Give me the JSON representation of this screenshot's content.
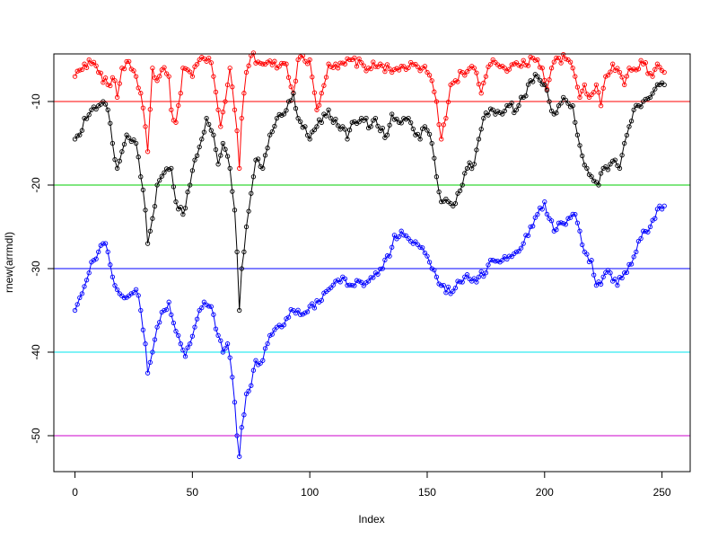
{
  "chart_data": {
    "type": "line",
    "xlabel": "Index",
    "ylabel": "rnew(arrmdl)",
    "xlim": [
      -9,
      262
    ],
    "ylim": [
      -54.3,
      -4.3
    ],
    "x_ticks": [
      0,
      50,
      100,
      150,
      200,
      250
    ],
    "y_ticks": [
      -10,
      -20,
      -30,
      -40,
      -50
    ],
    "grid": false,
    "legend": "none",
    "markers": "open circles",
    "x_points_per_series": 252,
    "hlines": [
      {
        "y": -10,
        "color": "#ff0000"
      },
      {
        "y": -20,
        "color": "#00cd00"
      },
      {
        "y": -30,
        "color": "#0000ff"
      },
      {
        "y": -40,
        "color": "#00e5ee"
      },
      {
        "y": -50,
        "color": "#cd00cd"
      }
    ],
    "series": [
      {
        "color": "#ff0000",
        "keypoints": [
          [
            0,
            -7.0
          ],
          [
            4,
            -5.5
          ],
          [
            8,
            -5.3
          ],
          [
            10,
            -6.5
          ],
          [
            14,
            -8.0
          ],
          [
            17,
            -7.5
          ],
          [
            18,
            -9.5
          ],
          [
            20,
            -6.0
          ],
          [
            23,
            -5.2
          ],
          [
            26,
            -7.0
          ],
          [
            28,
            -9.0
          ],
          [
            30,
            -13.0
          ],
          [
            31,
            -16.0
          ],
          [
            33,
            -6.0
          ],
          [
            35,
            -7.5
          ],
          [
            37,
            -6.2
          ],
          [
            40,
            -7.0
          ],
          [
            41,
            -11.0
          ],
          [
            43,
            -12.5
          ],
          [
            45,
            -9.0
          ],
          [
            46,
            -6.0
          ],
          [
            50,
            -7.0
          ],
          [
            53,
            -5.0
          ],
          [
            57,
            -4.8
          ],
          [
            59,
            -7.0
          ],
          [
            61,
            -11.0
          ],
          [
            62,
            -13.0
          ],
          [
            64,
            -10.0
          ],
          [
            65,
            -8.0
          ],
          [
            66,
            -6.0
          ],
          [
            68,
            -11.0
          ],
          [
            69,
            -13.5
          ],
          [
            70,
            -18.0
          ],
          [
            71,
            -12.0
          ],
          [
            72,
            -9.0
          ],
          [
            73,
            -6.5
          ],
          [
            75,
            -4.5
          ],
          [
            80,
            -5.5
          ],
          [
            90,
            -5.5
          ],
          [
            93,
            -9.0
          ],
          [
            95,
            -5.0
          ],
          [
            100,
            -5.0
          ],
          [
            103,
            -11.0
          ],
          [
            105,
            -9.0
          ],
          [
            108,
            -5.5
          ],
          [
            112,
            -6.0
          ],
          [
            118,
            -5.0
          ],
          [
            125,
            -6.0
          ],
          [
            130,
            -5.5
          ],
          [
            135,
            -6.5
          ],
          [
            140,
            -5.8
          ],
          [
            148,
            -6.0
          ],
          [
            150,
            -6.5
          ],
          [
            152,
            -7.5
          ],
          [
            154,
            -10.0
          ],
          [
            156,
            -14.5
          ],
          [
            158,
            -12.0
          ],
          [
            160,
            -8.0
          ],
          [
            165,
            -6.5
          ],
          [
            170,
            -6.0
          ],
          [
            173,
            -9.0
          ],
          [
            175,
            -7.0
          ],
          [
            178,
            -5.0
          ],
          [
            183,
            -6.0
          ],
          [
            187,
            -5.5
          ],
          [
            190,
            -5.8
          ],
          [
            195,
            -4.8
          ],
          [
            197,
            -5.0
          ],
          [
            199,
            -6.0
          ],
          [
            201,
            -8.5
          ],
          [
            203,
            -6.0
          ],
          [
            206,
            -4.8
          ],
          [
            210,
            -5.0
          ],
          [
            213,
            -7.0
          ],
          [
            215,
            -9.5
          ],
          [
            217,
            -8.0
          ],
          [
            219,
            -9.5
          ],
          [
            222,
            -8.0
          ],
          [
            224,
            -10.5
          ],
          [
            226,
            -7.0
          ],
          [
            229,
            -5.5
          ],
          [
            232,
            -6.5
          ],
          [
            234,
            -8.0
          ],
          [
            236,
            -6.0
          ],
          [
            242,
            -5.5
          ],
          [
            246,
            -7.0
          ],
          [
            248,
            -5.5
          ],
          [
            251,
            -6.5
          ]
        ]
      },
      {
        "color": "#000000",
        "keypoints": [
          [
            0,
            -14.5
          ],
          [
            2,
            -14.0
          ],
          [
            4,
            -12.0
          ],
          [
            7,
            -11.0
          ],
          [
            10,
            -10.5
          ],
          [
            12,
            -10.0
          ],
          [
            14,
            -11.0
          ],
          [
            16,
            -15.0
          ],
          [
            18,
            -18.0
          ],
          [
            20,
            -16.0
          ],
          [
            22,
            -14.0
          ],
          [
            26,
            -15.0
          ],
          [
            28,
            -19.0
          ],
          [
            30,
            -23.0
          ],
          [
            31,
            -27.0
          ],
          [
            33,
            -24.0
          ],
          [
            35,
            -20.0
          ],
          [
            38,
            -18.5
          ],
          [
            41,
            -18.0
          ],
          [
            43,
            -22.0
          ],
          [
            46,
            -23.5
          ],
          [
            49,
            -20.0
          ],
          [
            51,
            -17.0
          ],
          [
            54,
            -14.5
          ],
          [
            56,
            -12.0
          ],
          [
            59,
            -14.0
          ],
          [
            61,
            -17.5
          ],
          [
            63,
            -15.0
          ],
          [
            66,
            -18.0
          ],
          [
            68,
            -23.0
          ],
          [
            69,
            -28.0
          ],
          [
            70,
            -35.0
          ],
          [
            71,
            -30.0
          ],
          [
            73,
            -25.0
          ],
          [
            75,
            -21.0
          ],
          [
            77,
            -17.0
          ],
          [
            80,
            -18.0
          ],
          [
            83,
            -14.0
          ],
          [
            86,
            -12.0
          ],
          [
            89,
            -11.5
          ],
          [
            91,
            -10.0
          ],
          [
            93,
            -9.0
          ],
          [
            95,
            -12.0
          ],
          [
            98,
            -13.0
          ],
          [
            100,
            -14.5
          ],
          [
            103,
            -13.0
          ],
          [
            106,
            -11.5
          ],
          [
            108,
            -11.0
          ],
          [
            110,
            -12.5
          ],
          [
            114,
            -13.0
          ],
          [
            116,
            -14.5
          ],
          [
            118,
            -12.5
          ],
          [
            122,
            -12.0
          ],
          [
            126,
            -13.0
          ],
          [
            128,
            -12.0
          ],
          [
            130,
            -13.5
          ],
          [
            133,
            -14.0
          ],
          [
            135,
            -11.5
          ],
          [
            138,
            -12.5
          ],
          [
            142,
            -12.0
          ],
          [
            145,
            -14.0
          ],
          [
            147,
            -14.5
          ],
          [
            149,
            -13.0
          ],
          [
            152,
            -15.0
          ],
          [
            154,
            -19.0
          ],
          [
            156,
            -22.0
          ],
          [
            159,
            -22.0
          ],
          [
            161,
            -22.5
          ],
          [
            163,
            -21.0
          ],
          [
            165,
            -20.0
          ],
          [
            167,
            -18.0
          ],
          [
            170,
            -17.5
          ],
          [
            172,
            -14.5
          ],
          [
            174,
            -12.0
          ],
          [
            178,
            -11.0
          ],
          [
            182,
            -11.5
          ],
          [
            185,
            -10.5
          ],
          [
            188,
            -11.0
          ],
          [
            191,
            -9.5
          ],
          [
            194,
            -7.5
          ],
          [
            197,
            -7.0
          ],
          [
            200,
            -8.0
          ],
          [
            202,
            -10.0
          ],
          [
            204,
            -11.5
          ],
          [
            206,
            -10.5
          ],
          [
            208,
            -9.5
          ],
          [
            212,
            -10.5
          ],
          [
            214,
            -14.0
          ],
          [
            216,
            -16.5
          ],
          [
            218,
            -18.0
          ],
          [
            221,
            -19.5
          ],
          [
            223,
            -20.0
          ],
          [
            225,
            -18.0
          ],
          [
            228,
            -17.5
          ],
          [
            230,
            -17.0
          ],
          [
            232,
            -18.0
          ],
          [
            234,
            -15.0
          ],
          [
            236,
            -13.0
          ],
          [
            238,
            -11.0
          ],
          [
            240,
            -10.5
          ],
          [
            242,
            -10.0
          ],
          [
            245,
            -9.5
          ],
          [
            247,
            -8.5
          ],
          [
            249,
            -8.0
          ],
          [
            251,
            -8.0
          ]
        ]
      },
      {
        "color": "#0000ff",
        "keypoints": [
          [
            0,
            -35.0
          ],
          [
            3,
            -33.0
          ],
          [
            6,
            -30.5
          ],
          [
            8,
            -29.0
          ],
          [
            10,
            -28.0
          ],
          [
            12,
            -27.0
          ],
          [
            14,
            -28.0
          ],
          [
            16,
            -31.0
          ],
          [
            19,
            -33.0
          ],
          [
            21,
            -33.5
          ],
          [
            24,
            -33.0
          ],
          [
            26,
            -32.5
          ],
          [
            28,
            -35.0
          ],
          [
            30,
            -39.0
          ],
          [
            31,
            -42.5
          ],
          [
            33,
            -40.0
          ],
          [
            35,
            -37.0
          ],
          [
            38,
            -35.0
          ],
          [
            40,
            -34.0
          ],
          [
            42,
            -36.5
          ],
          [
            45,
            -39.0
          ],
          [
            47,
            -40.5
          ],
          [
            49,
            -39.0
          ],
          [
            51,
            -37.0
          ],
          [
            53,
            -35.0
          ],
          [
            55,
            -34.0
          ],
          [
            57,
            -34.5
          ],
          [
            59,
            -35.5
          ],
          [
            61,
            -38.0
          ],
          [
            63,
            -40.0
          ],
          [
            65,
            -39.0
          ],
          [
            67,
            -43.0
          ],
          [
            68,
            -46.0
          ],
          [
            69,
            -50.0
          ],
          [
            70,
            -52.5
          ],
          [
            71,
            -49.0
          ],
          [
            73,
            -45.0
          ],
          [
            75,
            -44.0
          ],
          [
            77,
            -41.0
          ],
          [
            80,
            -41.0
          ],
          [
            83,
            -38.0
          ],
          [
            86,
            -37.0
          ],
          [
            90,
            -36.0
          ],
          [
            93,
            -35.0
          ],
          [
            96,
            -35.5
          ],
          [
            100,
            -34.5
          ],
          [
            104,
            -34.0
          ],
          [
            108,
            -32.5
          ],
          [
            111,
            -31.5
          ],
          [
            114,
            -31.0
          ],
          [
            116,
            -32.0
          ],
          [
            118,
            -32.0
          ],
          [
            121,
            -31.5
          ],
          [
            125,
            -31.5
          ],
          [
            128,
            -30.5
          ],
          [
            131,
            -30.0
          ],
          [
            134,
            -28.5
          ],
          [
            136,
            -26.0
          ],
          [
            140,
            -26.0
          ],
          [
            144,
            -27.0
          ],
          [
            148,
            -27.5
          ],
          [
            150,
            -28.5
          ],
          [
            152,
            -30.0
          ],
          [
            154,
            -31.0
          ],
          [
            157,
            -32.0
          ],
          [
            160,
            -33.0
          ],
          [
            163,
            -31.5
          ],
          [
            166,
            -31.0
          ],
          [
            169,
            -31.5
          ],
          [
            172,
            -31.0
          ],
          [
            175,
            -30.5
          ],
          [
            178,
            -29.0
          ],
          [
            182,
            -29.0
          ],
          [
            185,
            -28.5
          ],
          [
            188,
            -28.0
          ],
          [
            191,
            -27.0
          ],
          [
            194,
            -25.0
          ],
          [
            197,
            -23.5
          ],
          [
            200,
            -22.0
          ],
          [
            202,
            -24.0
          ],
          [
            204,
            -25.5
          ],
          [
            207,
            -24.5
          ],
          [
            210,
            -24.0
          ],
          [
            213,
            -23.5
          ],
          [
            215,
            -25.5
          ],
          [
            217,
            -28.0
          ],
          [
            220,
            -29.0
          ],
          [
            222,
            -32.0
          ],
          [
            225,
            -31.0
          ],
          [
            228,
            -30.5
          ],
          [
            231,
            -32.0
          ],
          [
            234,
            -30.5
          ],
          [
            236,
            -29.5
          ],
          [
            239,
            -28.0
          ],
          [
            242,
            -25.5
          ],
          [
            245,
            -25.0
          ],
          [
            247,
            -24.0
          ],
          [
            249,
            -22.5
          ],
          [
            251,
            -22.5
          ]
        ]
      }
    ]
  }
}
